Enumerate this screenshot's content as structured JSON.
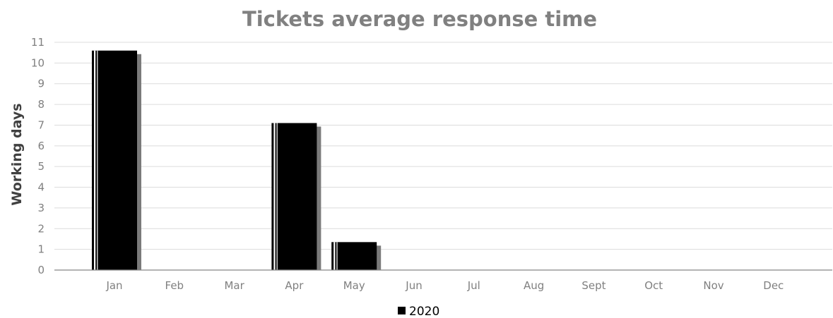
{
  "chart_data": {
    "type": "bar",
    "title": "Tickets average response time",
    "ylabel": "Working days",
    "xlabel": "",
    "categories": [
      "Jan",
      "Feb",
      "Mar",
      "Apr",
      "May",
      "Jun",
      "Jul",
      "Aug",
      "Sept",
      "Oct",
      "Nov",
      "Dec"
    ],
    "series": [
      {
        "name": "2020",
        "values": [
          10.6,
          0,
          0,
          7.1,
          1.35,
          0,
          0,
          0,
          0,
          0,
          0,
          0
        ],
        "color": "#000000"
      }
    ],
    "ylim": [
      0,
      11
    ],
    "yticks": [
      "0",
      "1",
      "2",
      "3",
      "4",
      "5",
      "6",
      "7",
      "8",
      "9",
      "10",
      "11"
    ],
    "grid": true,
    "legend_position": "bottom-center"
  }
}
